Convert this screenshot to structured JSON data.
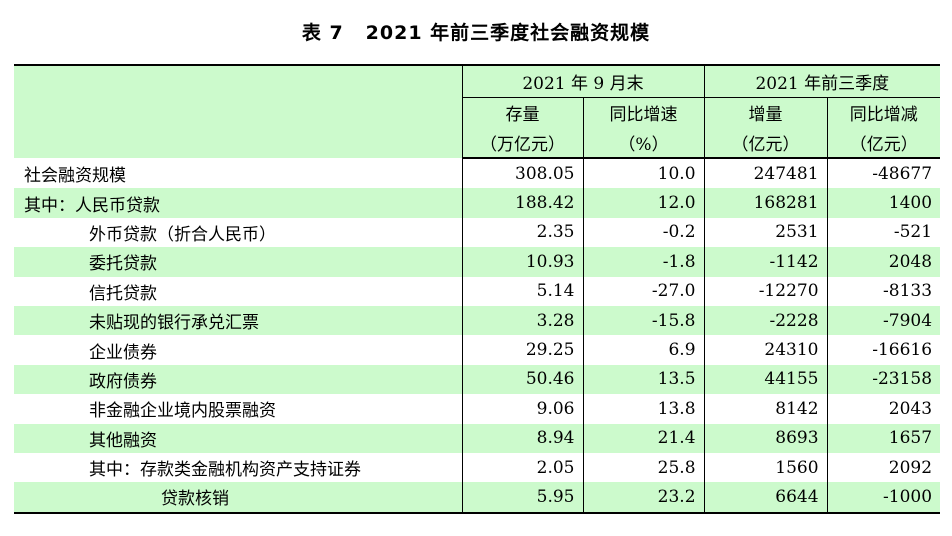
{
  "caption": {
    "number": "表 7",
    "title": "2021 年前三季度社会融资规模"
  },
  "header": {
    "group1": "2021 年 9 月末",
    "group2": "2021 年前三季度",
    "col1": {
      "name": "存量",
      "unit": "（万亿元）"
    },
    "col2": {
      "name": "同比增速",
      "unit": "（%）"
    },
    "col3": {
      "name": "增量",
      "unit": "（亿元）"
    },
    "col4": {
      "name": "同比增减",
      "unit": "（亿元）"
    }
  },
  "rows": [
    {
      "label": "社会融资规模",
      "indent": 0,
      "values": [
        "308.05",
        "10.0",
        "247481",
        "-48677"
      ]
    },
    {
      "label": "其中：人民币贷款",
      "indent": 0,
      "values": [
        "188.42",
        "12.0",
        "168281",
        "1400"
      ]
    },
    {
      "label": "外币贷款（折合人民币）",
      "indent": 1,
      "values": [
        "2.35",
        "-0.2",
        "2531",
        "-521"
      ]
    },
    {
      "label": "委托贷款",
      "indent": 1,
      "values": [
        "10.93",
        "-1.8",
        "-1142",
        "2048"
      ]
    },
    {
      "label": "信托贷款",
      "indent": 1,
      "values": [
        "5.14",
        "-27.0",
        "-12270",
        "-8133"
      ]
    },
    {
      "label": "未贴现的银行承兑汇票",
      "indent": 1,
      "values": [
        "3.28",
        "-15.8",
        "-2228",
        "-7904"
      ]
    },
    {
      "label": "企业债券",
      "indent": 1,
      "values": [
        "29.25",
        "6.9",
        "24310",
        "-16616"
      ]
    },
    {
      "label": "政府债券",
      "indent": 1,
      "values": [
        "50.46",
        "13.5",
        "44155",
        "-23158"
      ]
    },
    {
      "label": "非金融企业境内股票融资",
      "indent": 1,
      "values": [
        "9.06",
        "13.8",
        "8142",
        "2043"
      ]
    },
    {
      "label": "其他融资",
      "indent": 1,
      "values": [
        "8.94",
        "21.4",
        "8693",
        "1657"
      ]
    },
    {
      "label": "其中：存款类金融机构资产支持证券",
      "indent": 1,
      "values": [
        "2.05",
        "25.8",
        "1560",
        "2092"
      ]
    },
    {
      "label": "贷款核销",
      "indent": 2,
      "values": [
        "5.95",
        "23.2",
        "6644",
        "-1000"
      ]
    }
  ]
}
